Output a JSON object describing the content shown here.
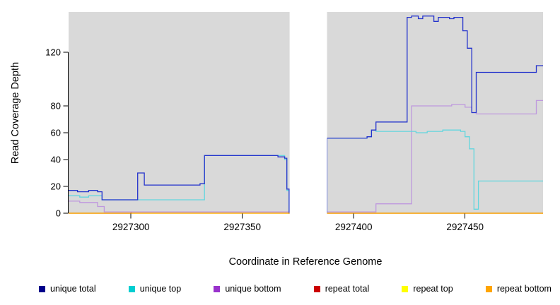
{
  "figure": {
    "background": "#ffffff"
  },
  "chart_data": {
    "type": "line",
    "subtype": "step-after",
    "title": "",
    "xlabel": "Coordinate in Reference Genome",
    "ylabel": "Read Coverage Depth",
    "xlim": [
      2927272,
      2927485
    ],
    "ylim": [
      0,
      150
    ],
    "x_ticks": [
      2927300,
      2927350,
      2927400,
      2927450
    ],
    "y_ticks": [
      0,
      20,
      40,
      60,
      80,
      120
    ],
    "grid": false,
    "panel_color": "#d9d9d9",
    "masked_region": {
      "from": 2927371,
      "to": 2927388,
      "color": "#ffffff"
    },
    "legend_position": "bottom",
    "series": [
      {
        "name": "unique total",
        "legend_color": "#00008B",
        "line_color": "#2433CC",
        "steps": [
          [
            2927272,
            17
          ],
          [
            2927276,
            16
          ],
          [
            2927281,
            17
          ],
          [
            2927285,
            16
          ],
          [
            2927287,
            10
          ],
          [
            2927303,
            30
          ],
          [
            2927306,
            21
          ],
          [
            2927331,
            22
          ],
          [
            2927333,
            43
          ],
          [
            2927366,
            42
          ],
          [
            2927369,
            41
          ],
          [
            2927370,
            18
          ],
          [
            2927371,
            0
          ],
          [
            2927388,
            56
          ],
          [
            2927406,
            57
          ],
          [
            2927408,
            62
          ],
          [
            2927410,
            68
          ],
          [
            2927424,
            146
          ],
          [
            2927426,
            147
          ],
          [
            2927429,
            145
          ],
          [
            2927431,
            147
          ],
          [
            2927436,
            143
          ],
          [
            2927438,
            146
          ],
          [
            2927443,
            145
          ],
          [
            2927445,
            146
          ],
          [
            2927449,
            136
          ],
          [
            2927451,
            123
          ],
          [
            2927453,
            75
          ],
          [
            2927455,
            105
          ],
          [
            2927482,
            110
          ]
        ]
      },
      {
        "name": "unique top",
        "legend_color": "#00CED1",
        "line_color": "#63D6DE",
        "steps": [
          [
            2927272,
            13
          ],
          [
            2927277,
            12
          ],
          [
            2927281,
            13
          ],
          [
            2927287,
            10
          ],
          [
            2927333,
            43
          ],
          [
            2927369,
            40
          ],
          [
            2927370,
            17
          ],
          [
            2927371,
            0
          ],
          [
            2927388,
            56
          ],
          [
            2927406,
            57
          ],
          [
            2927408,
            62
          ],
          [
            2927410,
            61
          ],
          [
            2927428,
            60
          ],
          [
            2927433,
            61
          ],
          [
            2927440,
            62
          ],
          [
            2927448,
            61
          ],
          [
            2927450,
            57
          ],
          [
            2927452,
            48
          ],
          [
            2927454,
            3
          ],
          [
            2927456,
            24
          ]
        ]
      },
      {
        "name": "unique bottom",
        "legend_color": "#9932CC",
        "line_color": "#BE98DE",
        "steps": [
          [
            2927272,
            9
          ],
          [
            2927277,
            8
          ],
          [
            2927285,
            5
          ],
          [
            2927288,
            1
          ],
          [
            2927371,
            0
          ],
          [
            2927388,
            1
          ],
          [
            2927410,
            7
          ],
          [
            2927426,
            80
          ],
          [
            2927444,
            81
          ],
          [
            2927450,
            79
          ],
          [
            2927453,
            75
          ],
          [
            2927455,
            74
          ],
          [
            2927482,
            84
          ]
        ]
      },
      {
        "name": "repeat total",
        "legend_color": "#CC0000",
        "line_color": "#C04040",
        "steps": [
          [
            2927272,
            0
          ],
          [
            2927300,
            1
          ],
          [
            2927371,
            0
          ],
          [
            2927388,
            0
          ]
        ]
      },
      {
        "name": "repeat top",
        "legend_color": "#FFFF00",
        "line_color": "#FFFF00",
        "steps": [
          [
            2927272,
            0
          ]
        ]
      },
      {
        "name": "repeat bottom",
        "legend_color": "#FFA500",
        "line_color": "#FFA500",
        "steps": [
          [
            2927272,
            0
          ]
        ]
      }
    ]
  },
  "legend": {
    "items": [
      {
        "label": "unique total",
        "color": "#00008B"
      },
      {
        "label": "unique top",
        "color": "#00CED1"
      },
      {
        "label": "unique bottom",
        "color": "#9932CC"
      },
      {
        "label": "repeat total",
        "color": "#CC0000"
      },
      {
        "label": "repeat top",
        "color": "#FFFF00"
      },
      {
        "label": "repeat bottom",
        "color": "#FFA500"
      }
    ]
  }
}
